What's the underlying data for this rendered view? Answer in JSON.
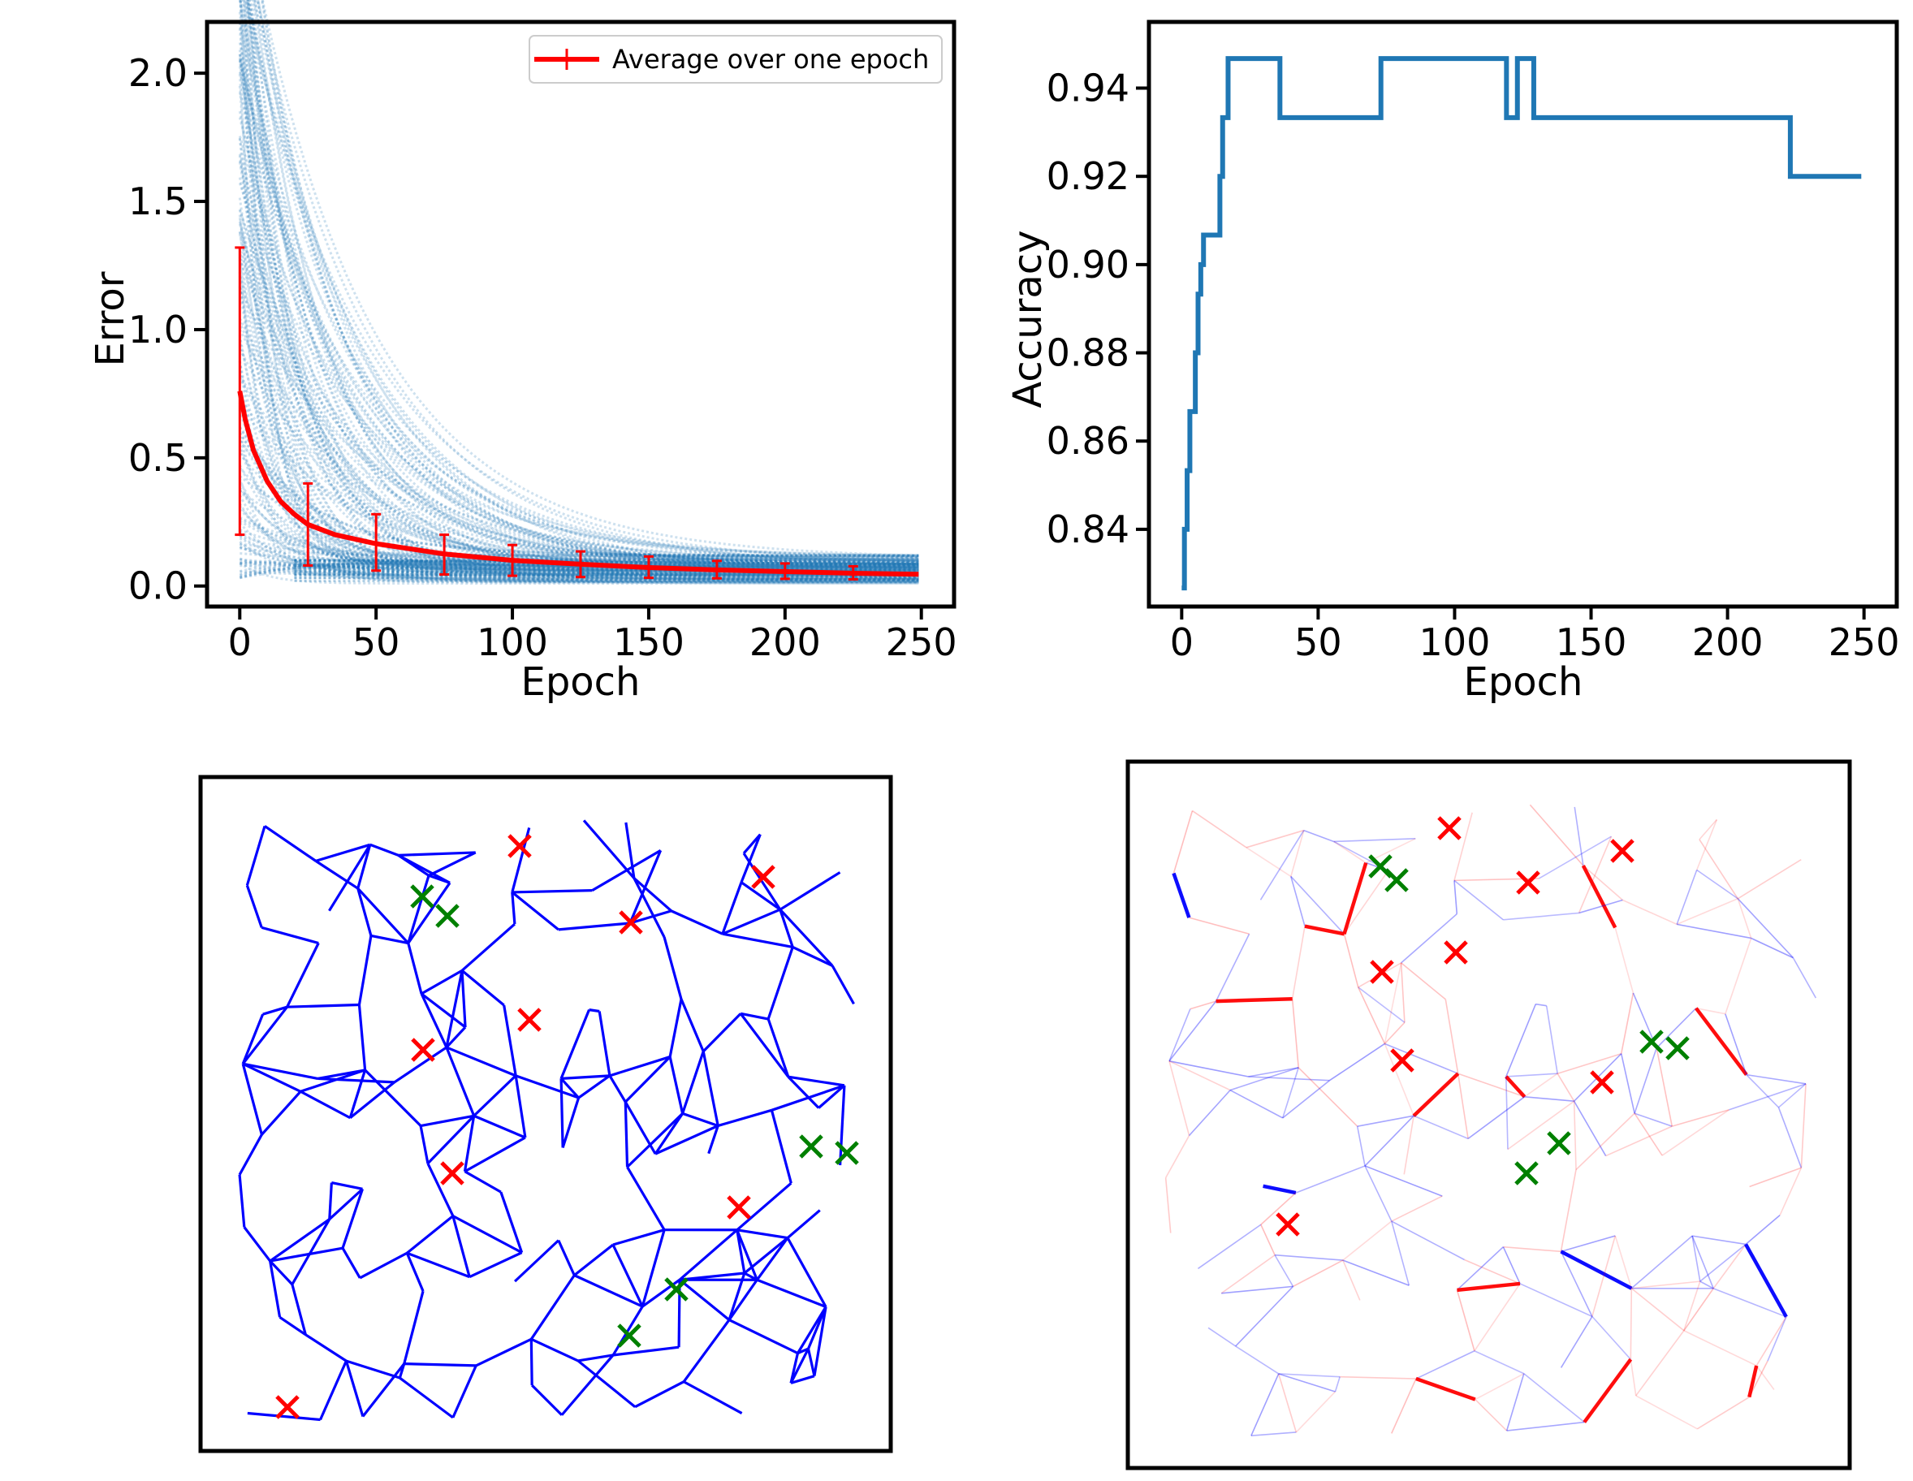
{
  "chart_data": [
    {
      "type": "line",
      "panel": "top-left",
      "xlabel": "Epoch",
      "ylabel": "Error",
      "xlim": [
        -12,
        262
      ],
      "ylim": [
        -0.08,
        2.2
      ],
      "xticks": [
        0,
        50,
        100,
        150,
        200,
        250
      ],
      "yticks": [
        0.0,
        0.5,
        1.0,
        1.5,
        2.0
      ],
      "xtick_labels": [
        "0",
        "50",
        "100",
        "150",
        "200",
        "250"
      ],
      "ytick_labels": [
        "0.0",
        "0.5",
        "1.0",
        "1.5",
        "2.0"
      ],
      "legend": {
        "label": "Average over one epoch",
        "placement": "top-right"
      },
      "series": [
        {
          "name": "Average over one epoch",
          "color": "#ff0000",
          "x": [
            0,
            2,
            5,
            10,
            15,
            20,
            25,
            35,
            50,
            75,
            100,
            125,
            150,
            175,
            200,
            225,
            249
          ],
          "y": [
            0.76,
            0.65,
            0.53,
            0.41,
            0.33,
            0.28,
            0.24,
            0.2,
            0.165,
            0.125,
            0.1,
            0.085,
            0.072,
            0.063,
            0.056,
            0.05,
            0.046
          ]
        }
      ],
      "error_bars": {
        "x": [
          0,
          25,
          50,
          75,
          100,
          125,
          150,
          175,
          200,
          225
        ],
        "y": [
          0.76,
          0.24,
          0.165,
          0.125,
          0.1,
          0.085,
          0.072,
          0.063,
          0.056,
          0.05
        ],
        "lower": [
          0.2,
          0.08,
          0.06,
          0.045,
          0.04,
          0.035,
          0.032,
          0.03,
          0.028,
          0.026
        ],
        "upper": [
          1.32,
          0.4,
          0.28,
          0.2,
          0.16,
          0.135,
          0.115,
          0.098,
          0.088,
          0.077
        ]
      },
      "scatter_color": "#1f77b4",
      "scatter_description_count": 150
    },
    {
      "type": "line",
      "panel": "top-right",
      "xlabel": "Epoch",
      "ylabel": "Accuracy",
      "xlim": [
        -12,
        262
      ],
      "ylim": [
        0.8225,
        0.955
      ],
      "xticks": [
        0,
        50,
        100,
        150,
        200,
        250
      ],
      "yticks": [
        0.84,
        0.86,
        0.88,
        0.9,
        0.92,
        0.94
      ],
      "xtick_labels": [
        "0",
        "50",
        "100",
        "150",
        "200",
        "250"
      ],
      "ytick_labels": [
        "0.84",
        "0.86",
        "0.88",
        "0.90",
        "0.92",
        "0.94"
      ],
      "series": [
        {
          "color": "#1f77b4",
          "x": [
            0,
            1,
            1,
            2,
            2,
            3,
            3,
            5,
            5,
            6,
            6,
            7,
            7,
            8,
            8,
            14,
            14,
            15,
            15,
            17,
            17,
            36,
            36,
            73,
            73,
            119,
            119,
            123,
            123,
            124,
            124,
            129,
            129,
            223,
            223,
            249
          ],
          "y": [
            0.8267,
            0.8267,
            0.84,
            0.84,
            0.8533,
            0.8533,
            0.8667,
            0.8667,
            0.88,
            0.88,
            0.8933,
            0.8933,
            0.9,
            0.9,
            0.9067,
            0.9067,
            0.92,
            0.92,
            0.9333,
            0.9333,
            0.9467,
            0.9467,
            0.9333,
            0.9333,
            0.9467,
            0.9467,
            0.9333,
            0.9333,
            0.9467,
            0.9467,
            0.9467,
            0.9467,
            0.9333,
            0.9333,
            0.92,
            0.92
          ]
        }
      ]
    }
  ],
  "networks": {
    "left": {
      "edge_color": "#0000ff",
      "red_markers": [
        [
          129,
          1019
        ],
        [
          169,
          1065
        ],
        [
          221,
          943
        ],
        [
          326,
          965
        ],
        [
          353,
          930
        ],
        [
          390,
          907
        ],
        [
          433,
          944
        ],
        [
          395,
          740
        ],
        [
          412,
          733
        ],
        [
          210,
          1160
        ],
        [
          282,
          1161
        ]
      ],
      "green_markers": [
        [
          177,
          1058
        ],
        [
          188,
          1052
        ],
        [
          352,
          868
        ],
        [
          358,
          874
        ],
        [
          329,
          899
        ],
        [
          334,
          913
        ],
        [
          277,
          1164
        ],
        [
          277,
          1164
        ]
      ]
    },
    "right": {
      "red_markers": [
        [
          1195,
          680
        ],
        [
          1408,
          708
        ],
        [
          1292,
          747
        ],
        [
          1203,
          833
        ],
        [
          1112,
          857
        ],
        [
          1137,
          966
        ],
        [
          1383,
          993
        ],
        [
          996,
          1168
        ]
      ],
      "green_markers": [
        [
          1110,
          727
        ],
        [
          1130,
          744
        ],
        [
          1444,
          943
        ],
        [
          1476,
          951
        ],
        [
          1330,
          1068
        ],
        [
          1290,
          1105
        ]
      ]
    }
  }
}
